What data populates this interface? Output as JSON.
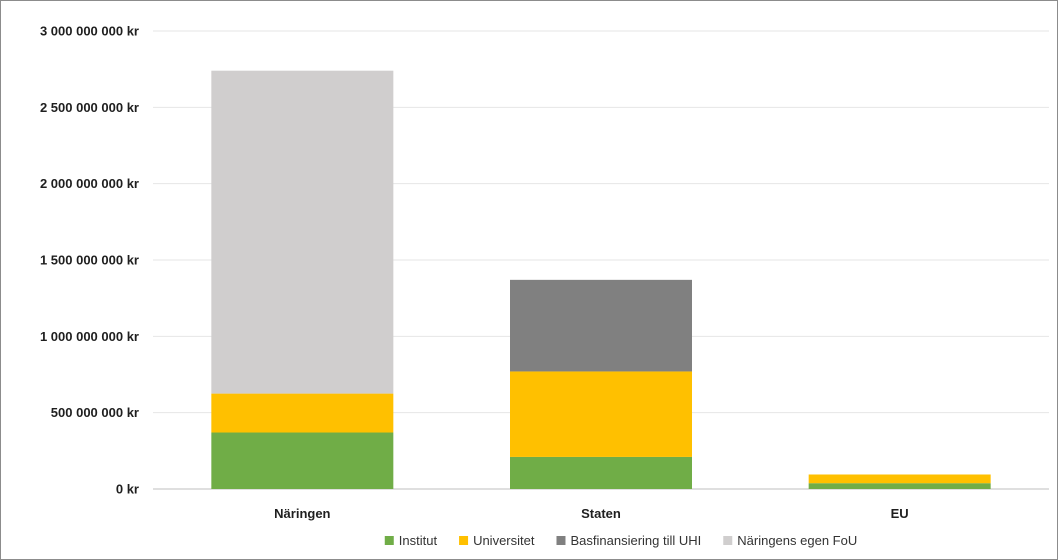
{
  "chart_data": {
    "type": "bar",
    "stacked": true,
    "title": "",
    "xlabel": "",
    "ylabel": "",
    "categories": [
      "Näringen",
      "Staten",
      "EU"
    ],
    "series": [
      {
        "name": "Institut",
        "color": "#70ad47",
        "values": [
          370000000,
          210000000,
          38000000
        ]
      },
      {
        "name": "Universitet",
        "color": "#ffc000",
        "values": [
          255000000,
          560000000,
          57000000
        ]
      },
      {
        "name": "Basfinansiering till UHI",
        "color": "#808080",
        "values": [
          0,
          600000000,
          0
        ]
      },
      {
        "name": "Näringens egen FoU",
        "color": "#d0cece",
        "values": [
          2115000000,
          0,
          0
        ]
      }
    ],
    "ylim": [
      0,
      3000000000
    ],
    "yticks": [
      0,
      500000000,
      1000000000,
      1500000000,
      2000000000,
      2500000000,
      3000000000
    ],
    "ytick_labels": [
      "0 kr",
      "500 000 000 kr",
      "1 000 000 000 kr",
      "1 500 000 000 kr",
      "2 000 000 000 kr",
      "2 500 000 000 kr",
      "3 000 000 000 kr"
    ],
    "grid": true,
    "legend_position": "bottom"
  }
}
